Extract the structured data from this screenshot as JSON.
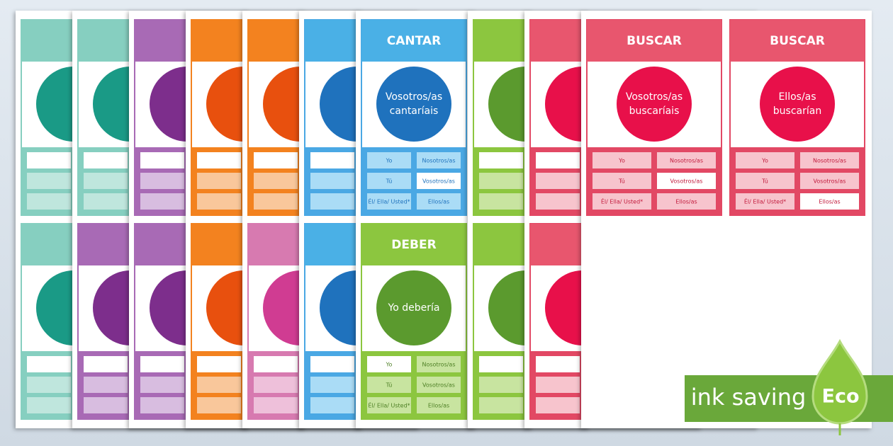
{
  "cards": [
    {
      "verb": "CANTAR",
      "form": [
        "Vosotros/as",
        "cantaríais"
      ],
      "cells": [
        "Yo",
        "Nosotros/as",
        "Tú",
        "Vosotros/as",
        "Él/ Ella/ Usted*",
        "Ellos/as"
      ],
      "highlight": 3,
      "header_color": "#4ab0e6",
      "circle_color": "#1f72bd",
      "table_color": "#4aa8e4",
      "cell_color": "#aadcf6",
      "cell_text_color": "#1f72bd"
    },
    {
      "verb": "DEBER",
      "form": [
        "Yo debería"
      ],
      "cells": [
        "Yo",
        "Nosotros/as",
        "Tú",
        "Vosotros/as",
        "Él/ Ella/ Usted*",
        "Ellos/as"
      ],
      "highlight": 0,
      "header_color": "#8cc63f",
      "circle_color": "#5b9a2e",
      "table_color": "#8cc63f",
      "cell_color": "#c8e4a0",
      "cell_text_color": "#4d7f24"
    },
    {
      "verb": "BUSCAR",
      "form": [
        "Vosotros/as",
        "buscaríais"
      ],
      "cells": [
        "Yo",
        "Nosotros/as",
        "Tú",
        "Vosotros/as",
        "Él/ Ella/ Usted*",
        "Ellos/as"
      ],
      "highlight": 3,
      "header_color": "#e8566e",
      "circle_color": "#e8104a",
      "table_color": "#e24864",
      "cell_color": "#f7c4cd",
      "cell_text_color": "#c21a3c"
    },
    {
      "verb": "BUSCAR",
      "form": [
        "Ellos/as",
        "buscarían"
      ],
      "cells": [
        "Yo",
        "Nosotros/as",
        "Tú",
        "Vosotros/as",
        "Él/ Ella/ Usted*",
        "Ellos/as"
      ],
      "highlight": 5,
      "header_color": "#e8566e",
      "circle_color": "#e8104a",
      "table_color": "#e24864",
      "cell_color": "#f7c4cd",
      "cell_text_color": "#c21a3c"
    }
  ],
  "badge": {
    "label": "ink saving",
    "eco": "Eco"
  }
}
